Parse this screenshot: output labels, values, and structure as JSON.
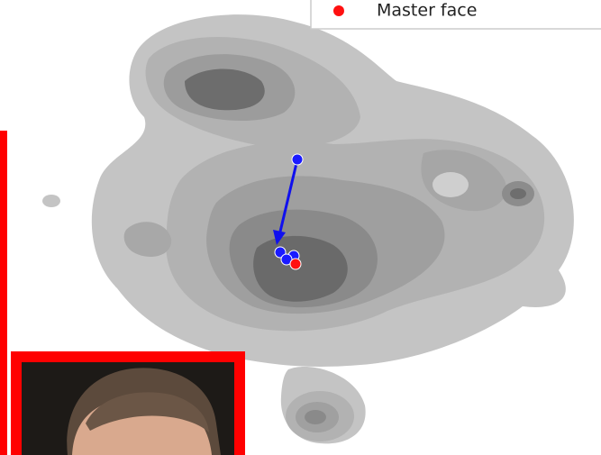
{
  "legend": {
    "label": "Master face"
  }
}
